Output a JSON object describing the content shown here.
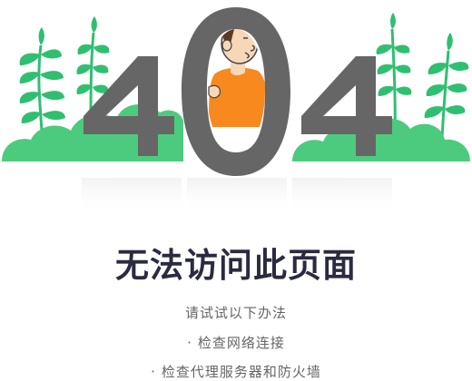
{
  "error": {
    "code_left": "4",
    "code_middle": "0",
    "code_right": "4",
    "title": "无法访问此页面"
  },
  "tips": {
    "header": "请试试以下办法",
    "bullet": "·",
    "items": [
      "检查网络连接",
      "检查代理服务器和防火墙"
    ]
  },
  "colors": {
    "digit": "#666666",
    "plant": "#2fbf71",
    "bush": "#4ccb7e",
    "shirt": "#f7891f",
    "cap": "#f0555a",
    "title": "#2a2a40",
    "text": "#666666"
  }
}
